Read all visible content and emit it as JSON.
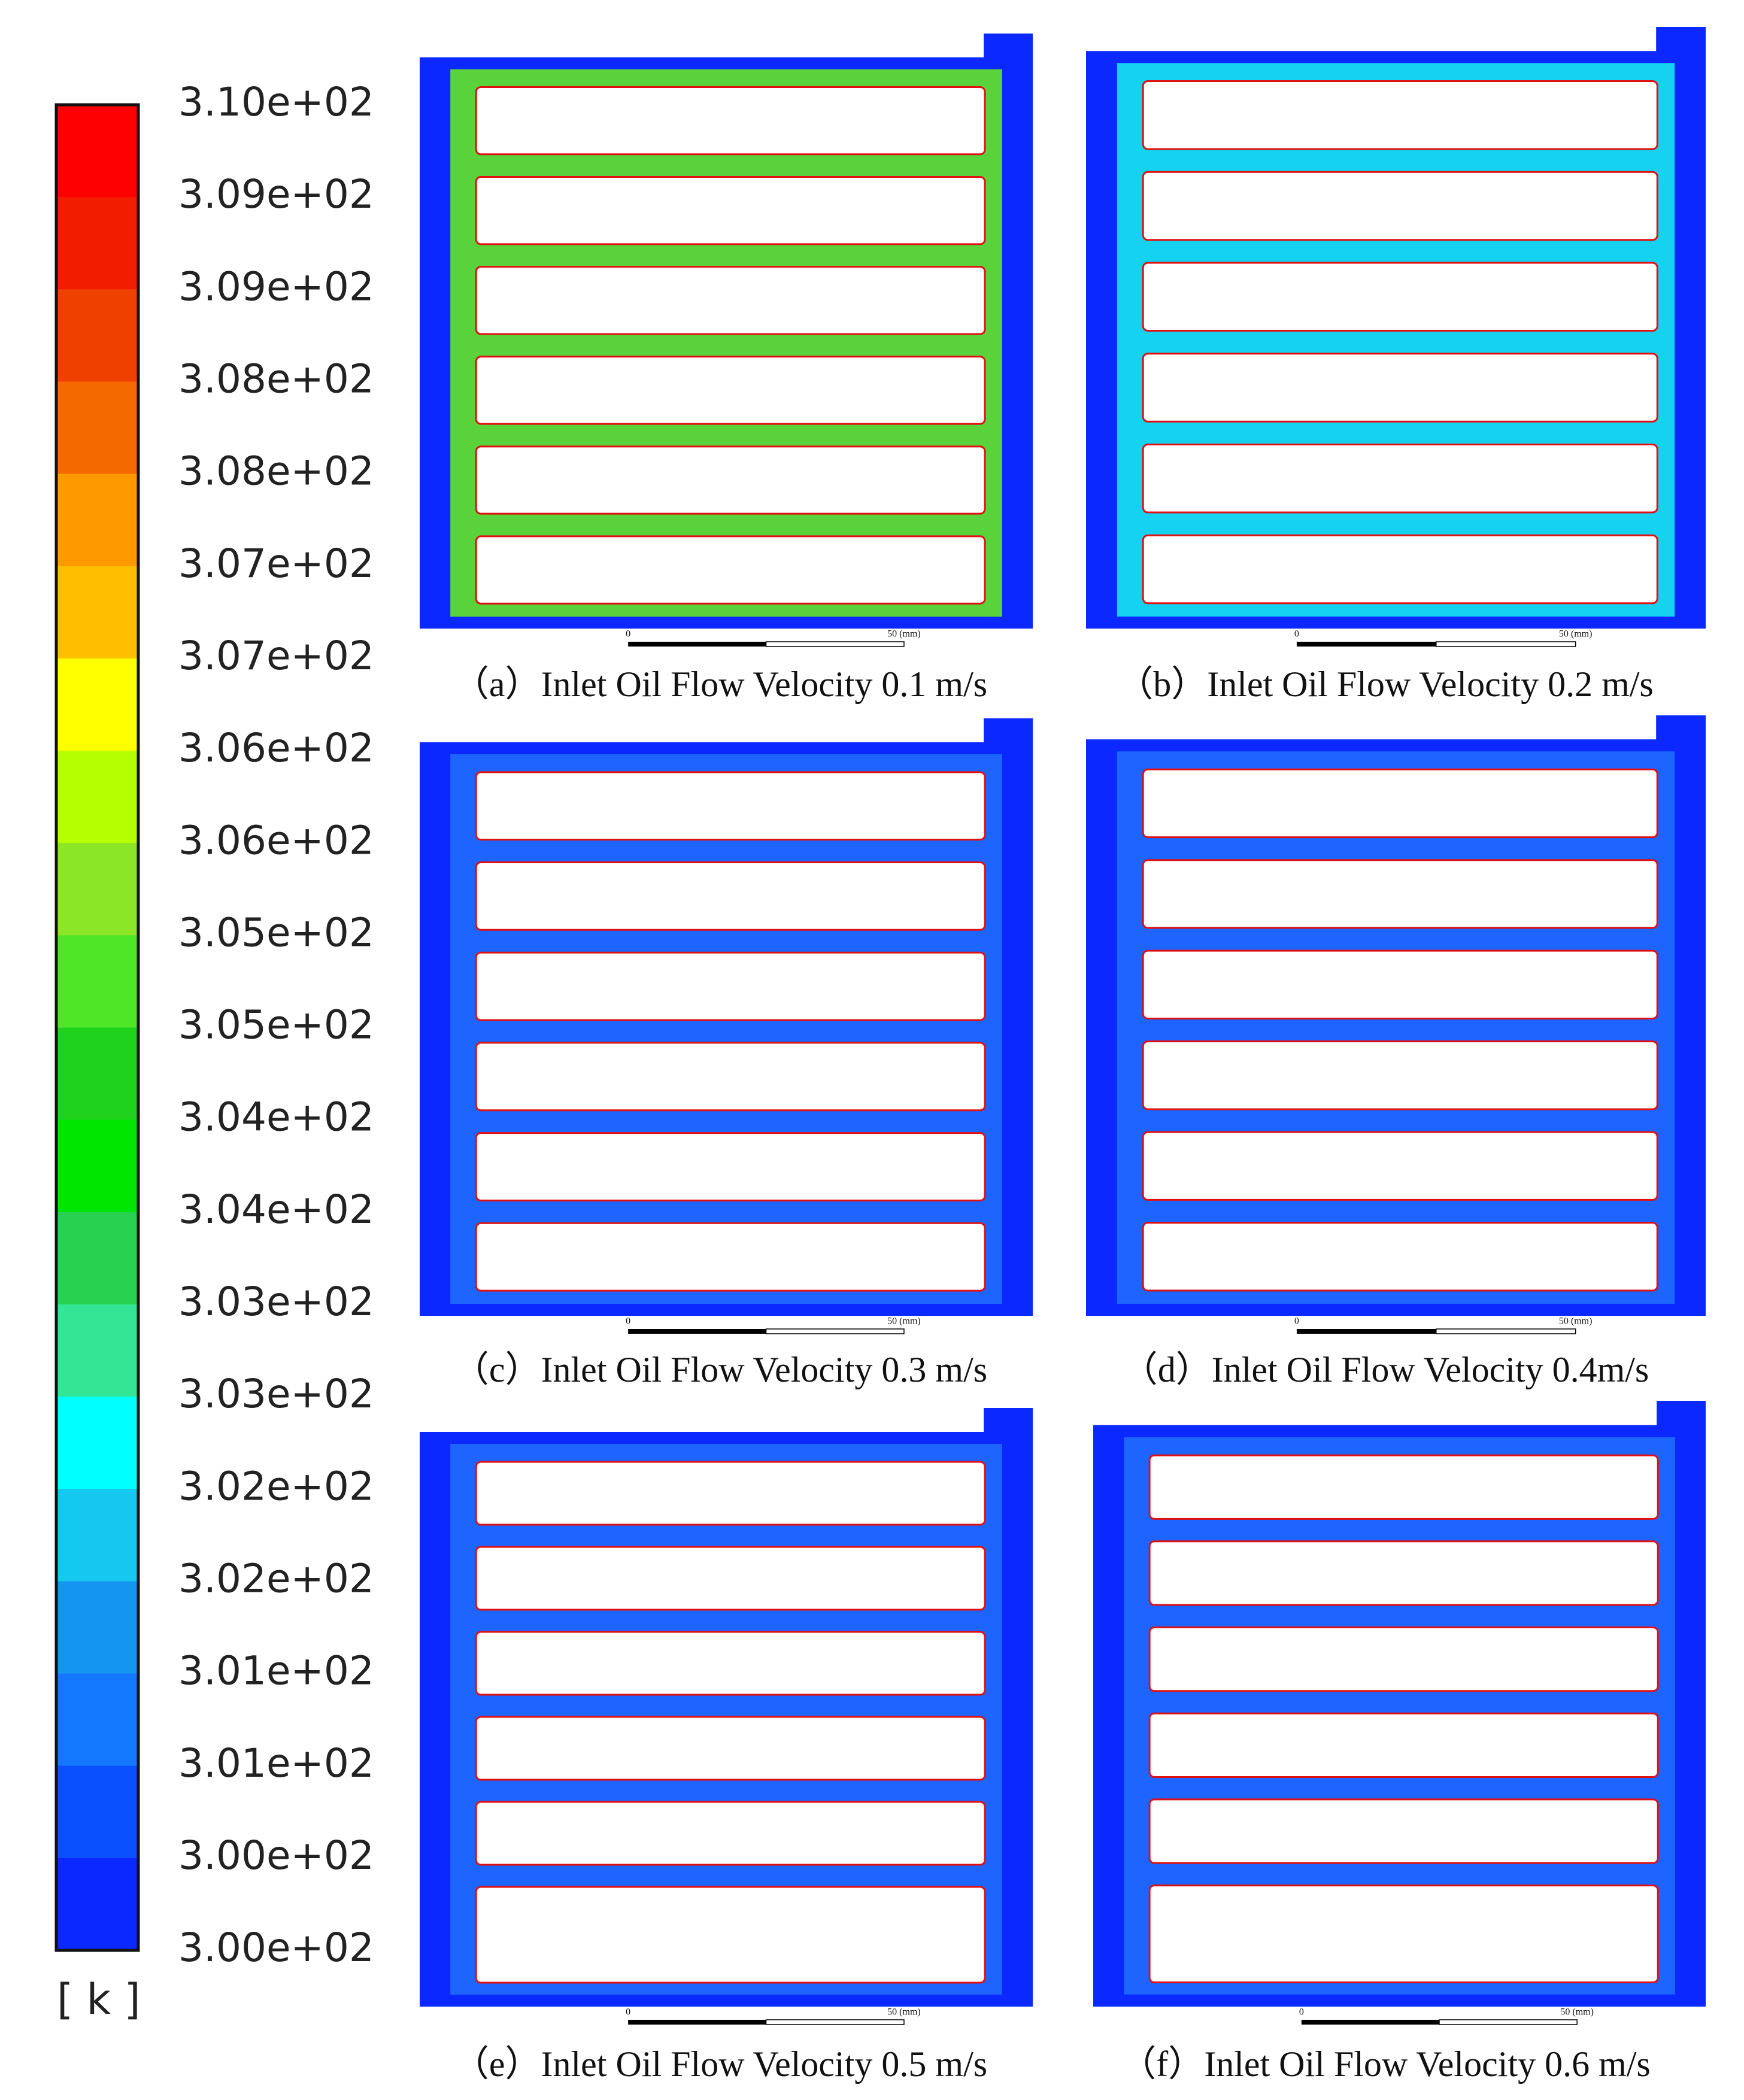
{
  "colorbar": {
    "labels": [
      "3.10e+02",
      "3.09e+02",
      "3.09e+02",
      "3.08e+02",
      "3.08e+02",
      "3.07e+02",
      "3.07e+02",
      "3.06e+02",
      "3.06e+02",
      "3.05e+02",
      "3.05e+02",
      "3.04e+02",
      "3.04e+02",
      "3.03e+02",
      "3.03e+02",
      "3.02e+02",
      "3.02e+02",
      "3.01e+02",
      "3.01e+02",
      "3.00e+02",
      "3.00e+02"
    ],
    "colors": [
      "#ff0000",
      "#f21c00",
      "#f04000",
      "#f46a00",
      "#ff9900",
      "#ffbf00",
      "#ffff00",
      "#b4ff00",
      "#8ce628",
      "#50e628",
      "#1ed21e",
      "#00e600",
      "#28d250",
      "#32e696",
      "#00ffff",
      "#14c8f0",
      "#1496f0",
      "#1478ff",
      "#0a50ff",
      "#0a28ff"
    ],
    "unit": "[ k ]"
  },
  "panels": [
    {
      "caption": "（a）Inlet Oil Flow Velocity 0.1 m/s",
      "scale_start": "0",
      "scale_end": "50 (mm)"
    },
    {
      "caption": "（b）Inlet Oil Flow Velocity 0.2 m/s",
      "scale_start": "0",
      "scale_end": "50 (mm)"
    },
    {
      "caption": "（c）Inlet Oil Flow Velocity 0.3 m/s",
      "scale_start": "0",
      "scale_end": "50 (mm)"
    },
    {
      "caption": "（d）Inlet Oil Flow Velocity 0.4m/s",
      "scale_start": "0",
      "scale_end": "50 (mm)"
    },
    {
      "caption": "（e）Inlet Oil Flow Velocity 0.5 m/s",
      "scale_start": "0",
      "scale_end": "50 (mm)"
    },
    {
      "caption": "（f）Inlet Oil Flow Velocity 0.6 m/s",
      "scale_start": "0",
      "scale_end": "50 (mm)"
    }
  ]
}
